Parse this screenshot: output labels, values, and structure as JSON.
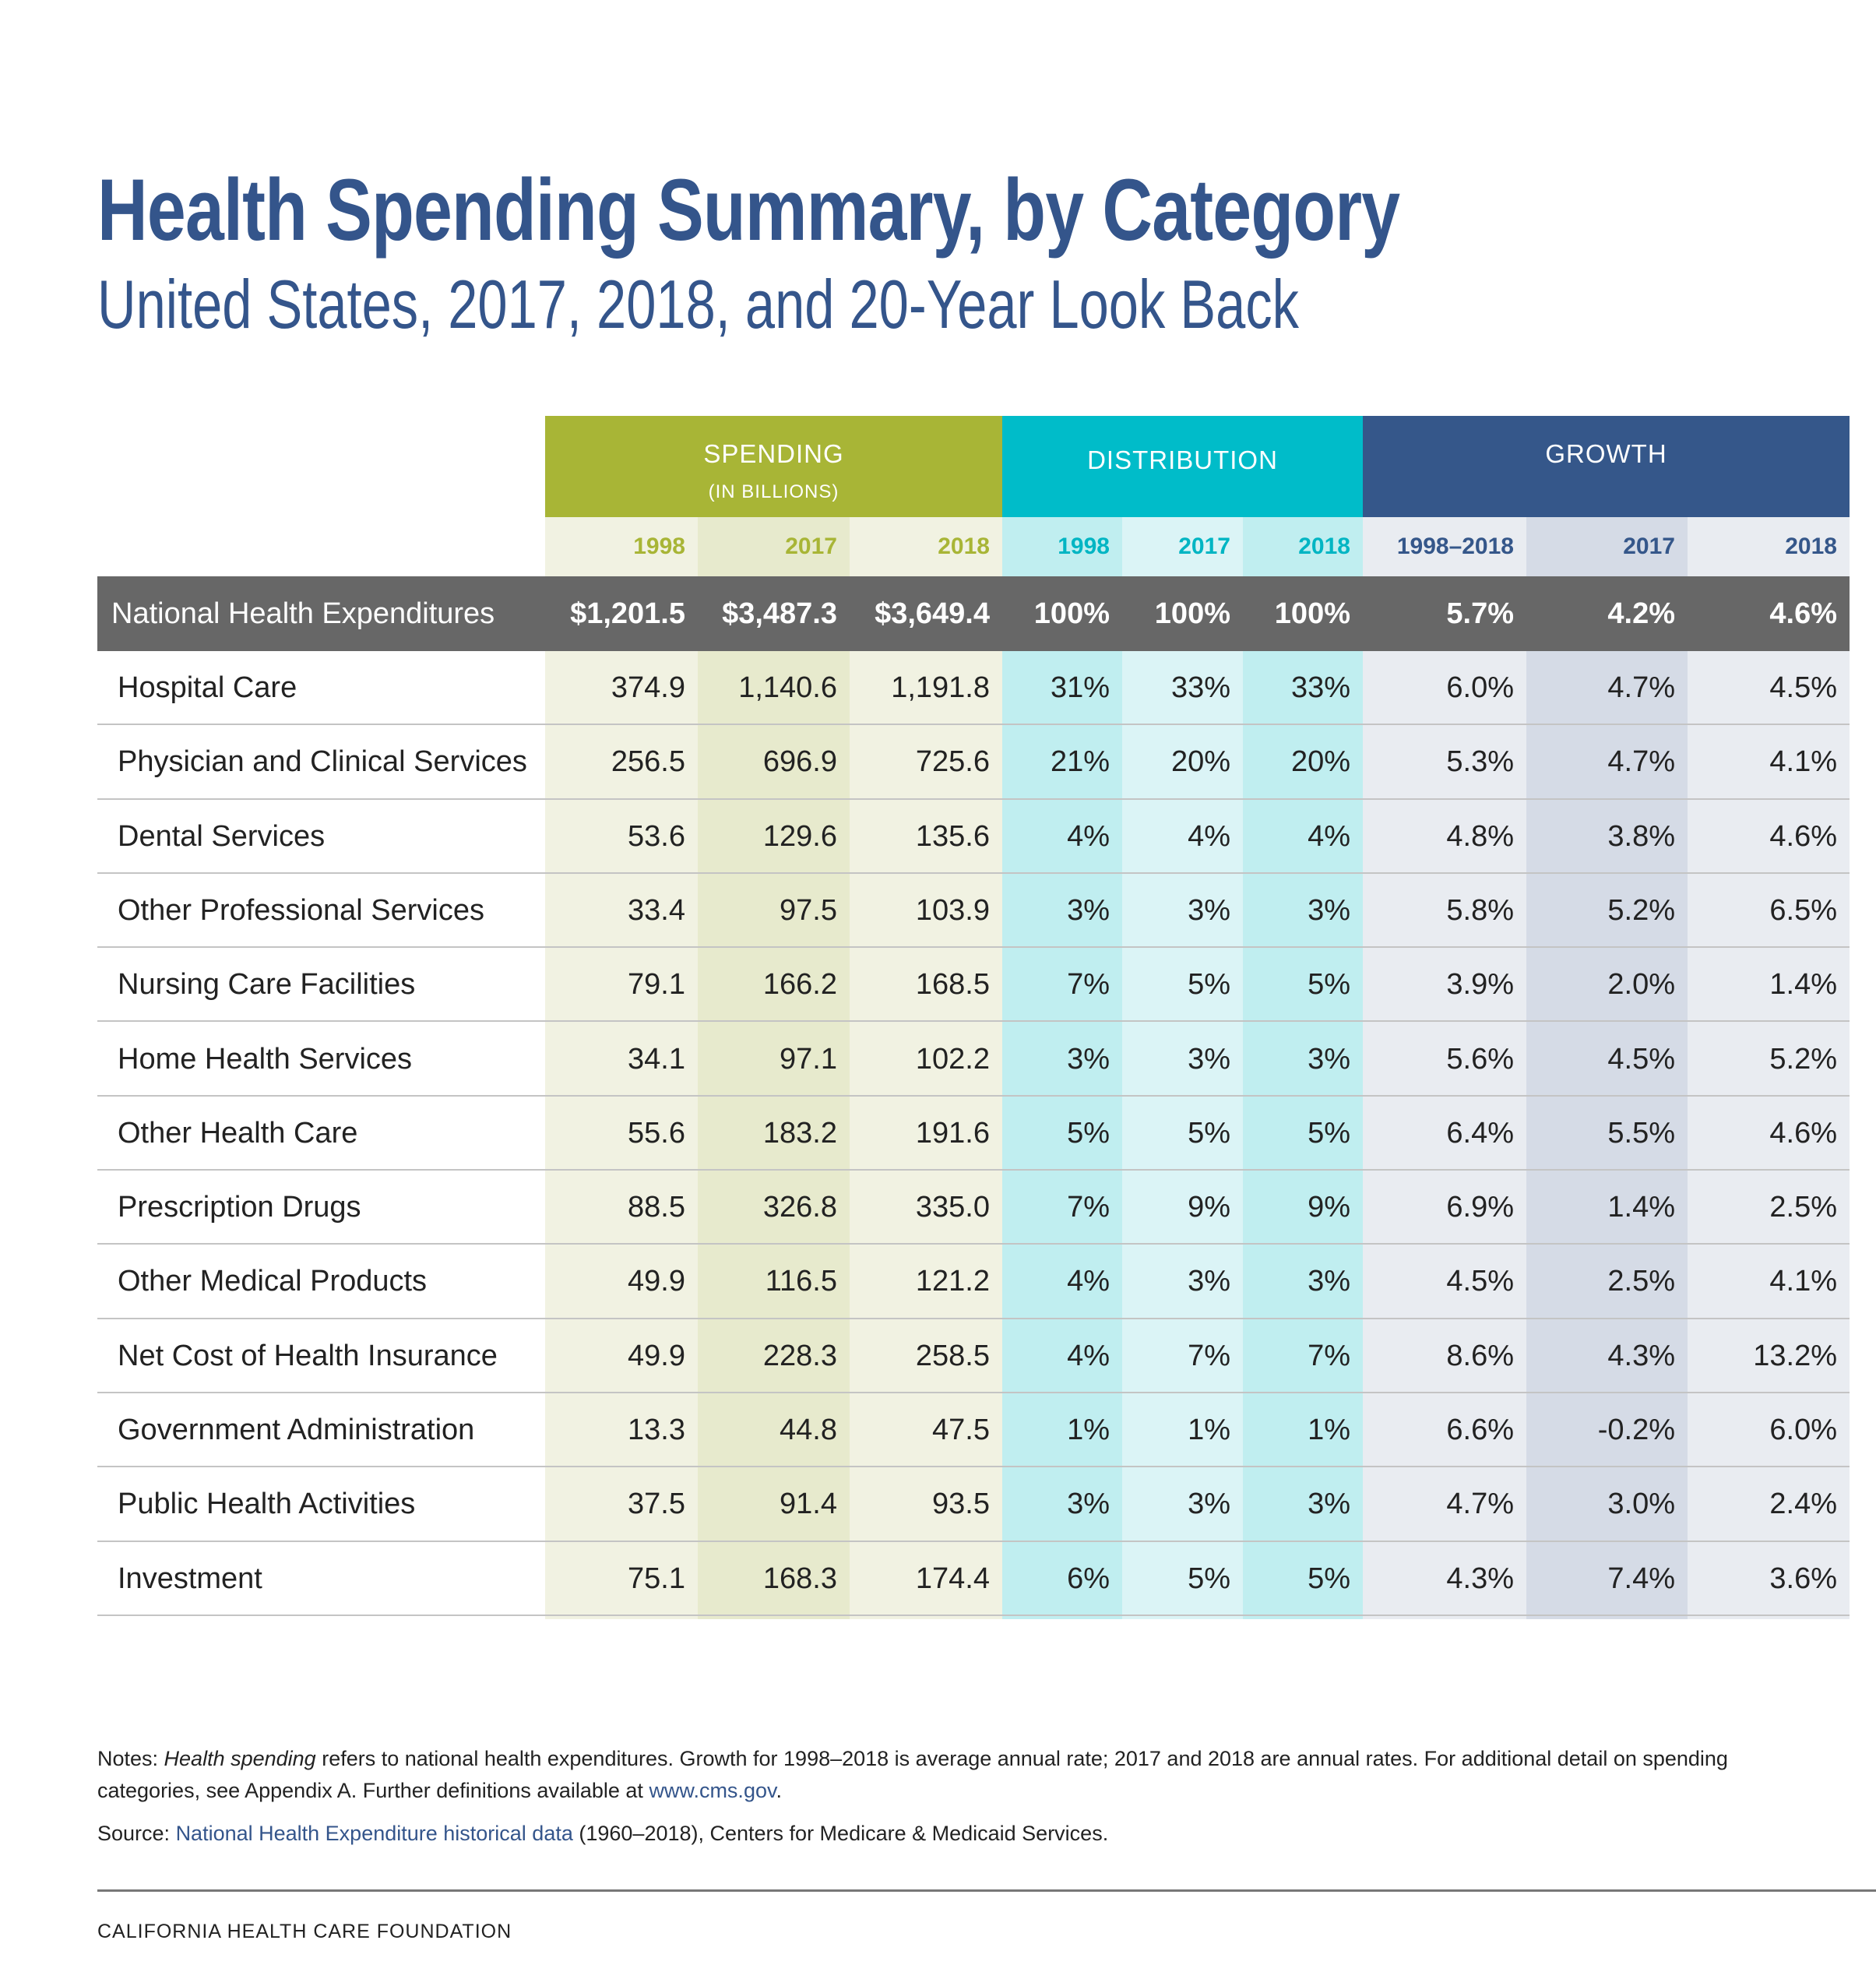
{
  "title": "Health Spending Summary, by Category",
  "subtitle": "United States, 2017, 2018, and 20-Year Look Back",
  "colors": {
    "spending": "#a8b536",
    "distribution": "#00bcc9",
    "growth": "#35578a",
    "total_row": "#676767"
  },
  "groups": {
    "spending": {
      "label": "SPENDING",
      "sublabel": "(IN BILLIONS)"
    },
    "distribution": {
      "label": "DISTRIBUTION"
    },
    "growth": {
      "label": "GROWTH"
    }
  },
  "year_headers": [
    "1998",
    "2017",
    "2018",
    "1998",
    "2017",
    "2018",
    "1998–2018",
    "2017",
    "2018"
  ],
  "total_row": {
    "label": "National Health Expenditures",
    "values": [
      "$1,201.5",
      "$3,487.3",
      "$3,649.4",
      "100%",
      "100%",
      "100%",
      "5.7%",
      "4.2%",
      "4.6%"
    ]
  },
  "rows": [
    {
      "label": "Hospital Care",
      "values": [
        "374.9",
        "1,140.6",
        "1,191.8",
        "31%",
        "33%",
        "33%",
        "6.0%",
        "4.7%",
        "4.5%"
      ]
    },
    {
      "label": "Physician and Clinical Services",
      "values": [
        "256.5",
        "696.9",
        "725.6",
        "21%",
        "20%",
        "20%",
        "5.3%",
        "4.7%",
        "4.1%"
      ]
    },
    {
      "label": "Dental Services",
      "values": [
        "53.6",
        "129.6",
        "135.6",
        "4%",
        "4%",
        "4%",
        "4.8%",
        "3.8%",
        "4.6%"
      ]
    },
    {
      "label": "Other Professional Services",
      "values": [
        "33.4",
        "97.5",
        "103.9",
        "3%",
        "3%",
        "3%",
        "5.8%",
        "5.2%",
        "6.5%"
      ]
    },
    {
      "label": "Nursing Care Facilities",
      "values": [
        "79.1",
        "166.2",
        "168.5",
        "7%",
        "5%",
        "5%",
        "3.9%",
        "2.0%",
        "1.4%"
      ]
    },
    {
      "label": "Home Health Services",
      "values": [
        "34.1",
        "97.1",
        "102.2",
        "3%",
        "3%",
        "3%",
        "5.6%",
        "4.5%",
        "5.2%"
      ]
    },
    {
      "label": "Other Health Care",
      "values": [
        "55.6",
        "183.2",
        "191.6",
        "5%",
        "5%",
        "5%",
        "6.4%",
        "5.5%",
        "4.6%"
      ]
    },
    {
      "label": "Prescription Drugs",
      "values": [
        "88.5",
        "326.8",
        "335.0",
        "7%",
        "9%",
        "9%",
        "6.9%",
        "1.4%",
        "2.5%"
      ]
    },
    {
      "label": "Other Medical Products",
      "values": [
        "49.9",
        "116.5",
        "121.2",
        "4%",
        "3%",
        "3%",
        "4.5%",
        "2.5%",
        "4.1%"
      ]
    },
    {
      "label": "Net Cost of Health Insurance",
      "values": [
        "49.9",
        "228.3",
        "258.5",
        "4%",
        "7%",
        "7%",
        "8.6%",
        "4.3%",
        "13.2%"
      ]
    },
    {
      "label": "Government Administration",
      "values": [
        "13.3",
        "44.8",
        "47.5",
        "1%",
        "1%",
        "1%",
        "6.6%",
        "-0.2%",
        "6.0%"
      ]
    },
    {
      "label": "Public Health Activities",
      "values": [
        "37.5",
        "91.4",
        "93.5",
        "3%",
        "3%",
        "3%",
        "4.7%",
        "3.0%",
        "2.4%"
      ]
    },
    {
      "label": "Investment",
      "values": [
        "75.1",
        "168.3",
        "174.4",
        "6%",
        "5%",
        "5%",
        "4.3%",
        "7.4%",
        "3.6%"
      ]
    }
  ],
  "notes": {
    "prefix": "Notes: ",
    "italic": "Health spending",
    "line1_rest": " refers to national health expenditures. Growth for 1998–2018 is average annual rate; 2017 and 2018 are annual rates. For additional detail on spending",
    "line2": "categories, see Appendix A. Further definitions available at ",
    "link": "www.cms.gov",
    "line2_end": "."
  },
  "source": {
    "prefix": "Source: ",
    "link": "National Health Expenditure historical data",
    "rest": " (1960–2018), Centers for Medicare & Medicaid Services."
  },
  "footer": "CALIFORNIA HEALTH CARE FOUNDATION"
}
